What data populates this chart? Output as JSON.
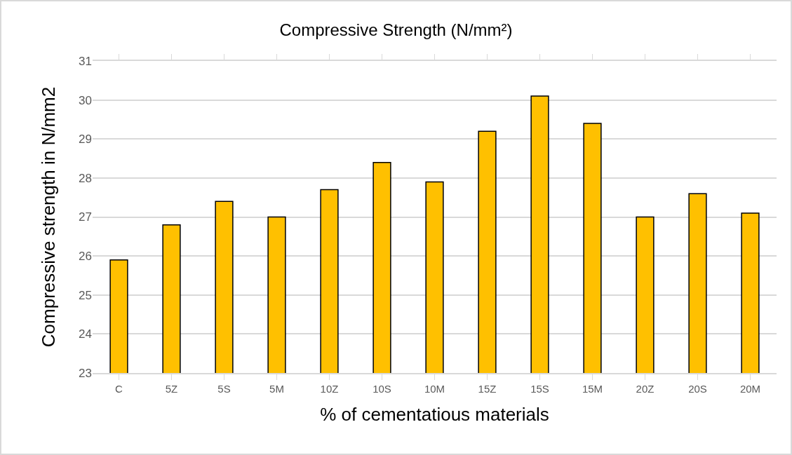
{
  "chart_data": {
    "type": "bar",
    "title": "Compressive Strength (N/mm²)",
    "xlabel": "% of cementatious materials",
    "ylabel": "Compressive strength in N/mm2",
    "categories": [
      "C",
      "5Z",
      "5S",
      "5M",
      "10Z",
      "10S",
      "10M",
      "15Z",
      "15S",
      "15M",
      "20Z",
      "20S",
      "20M"
    ],
    "values": [
      25.9,
      26.8,
      27.4,
      27.0,
      27.7,
      28.4,
      27.9,
      29.2,
      30.1,
      29.4,
      27.0,
      27.6,
      27.1
    ],
    "color": "#ffc000",
    "ylim": [
      23,
      31
    ],
    "yticks": [
      23,
      24,
      25,
      26,
      27,
      28,
      29,
      30,
      31
    ],
    "grid": "y"
  }
}
